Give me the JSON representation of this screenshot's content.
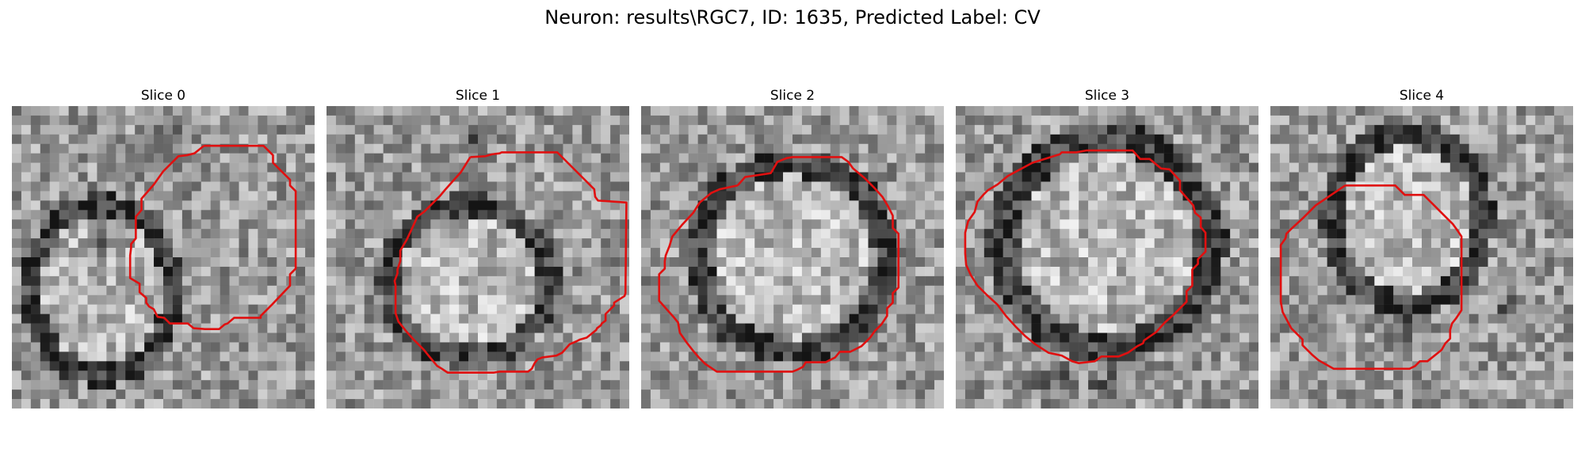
{
  "figure": {
    "title": "Neuron: results\\RGC7, ID: 1635, Predicted Label: CV"
  },
  "slices": [
    {
      "title": "Slice 0"
    },
    {
      "title": "Slice 1"
    },
    {
      "title": "Slice 2"
    },
    {
      "title": "Slice 3"
    },
    {
      "title": "Slice 4"
    }
  ],
  "style": {
    "contour_color": "#e01010",
    "image_colormap": "gray"
  }
}
